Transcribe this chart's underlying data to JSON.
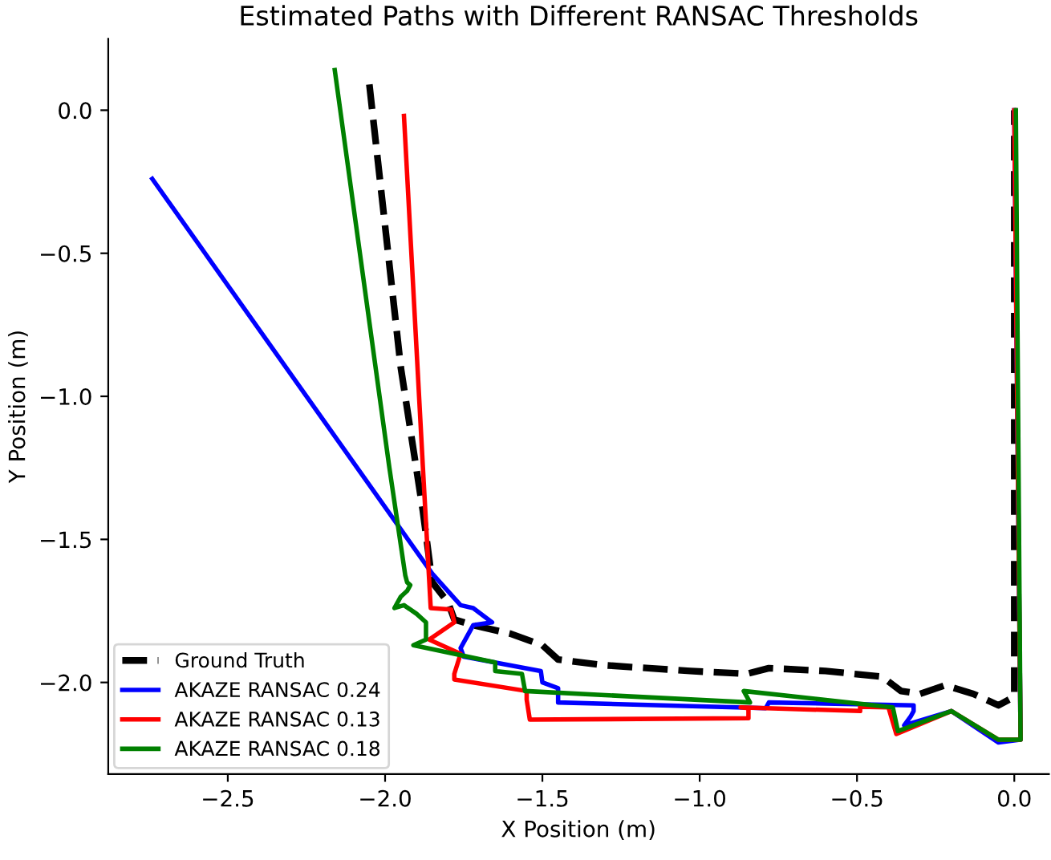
{
  "chart_data": {
    "type": "line",
    "title": "Estimated Paths with Different RANSAC Thresholds",
    "xlabel": "X Position (m)",
    "ylabel": "Y Position (m)",
    "xlim": [
      -2.88,
      0.11
    ],
    "ylim": [
      -2.32,
      0.25
    ],
    "xticks": [
      {
        "value": -2.5,
        "label": "−2.5"
      },
      {
        "value": -2.0,
        "label": "−2.0"
      },
      {
        "value": -1.5,
        "label": "−1.5"
      },
      {
        "value": -1.0,
        "label": "−1.0"
      },
      {
        "value": -0.5,
        "label": "−0.5"
      },
      {
        "value": 0.0,
        "label": "0.0"
      }
    ],
    "yticks": [
      {
        "value": 0.0,
        "label": "0.0"
      },
      {
        "value": -0.5,
        "label": "−0.5"
      },
      {
        "value": -1.0,
        "label": "−1.0"
      },
      {
        "value": -1.5,
        "label": "−1.5"
      },
      {
        "value": -2.0,
        "label": "−2.0"
      }
    ],
    "grid": false,
    "legend": "bottom left",
    "series": [
      {
        "name": "Ground Truth",
        "color": "#000000",
        "line_style": "dashed",
        "x": [
          -2.05,
          -1.95,
          -1.88,
          -1.85,
          -1.8,
          -1.78,
          -1.72,
          -1.6,
          -1.5,
          -1.45,
          -1.3,
          -1.03,
          -0.85,
          -0.78,
          -0.6,
          -0.42,
          -0.36,
          -0.3,
          -0.22,
          -0.13,
          -0.05,
          0.0,
          0.0,
          0.0
        ],
        "values": [
          0.09,
          -0.9,
          -1.4,
          -1.65,
          -1.72,
          -1.78,
          -1.8,
          -1.83,
          -1.87,
          -1.92,
          -1.94,
          -1.96,
          -1.97,
          -1.95,
          -1.96,
          -1.98,
          -2.03,
          -2.04,
          -2.01,
          -2.04,
          -2.08,
          -2.05,
          -1.0,
          0.0
        ]
      },
      {
        "name": "AKAZE RANSAC 0.24",
        "color": "#0000ff",
        "line_style": "solid",
        "x": [
          -2.74,
          -1.85,
          -1.76,
          -1.72,
          -1.66,
          -1.72,
          -1.76,
          -1.75,
          -1.505,
          -1.5,
          -1.45,
          -1.45,
          -0.79,
          -0.78,
          -0.32,
          -0.32,
          -0.33,
          -0.35,
          -0.2,
          -0.05,
          0.02,
          0.0
        ],
        "values": [
          -0.24,
          -1.62,
          -1.73,
          -1.74,
          -1.79,
          -1.8,
          -1.88,
          -1.91,
          -1.96,
          -2.0,
          -2.02,
          -2.07,
          -2.09,
          -2.07,
          -2.08,
          -2.1,
          -2.12,
          -2.15,
          -2.1,
          -2.21,
          -2.2,
          0.0
        ]
      },
      {
        "name": "AKAZE RANSAC 0.13",
        "color": "#ff0000",
        "line_style": "solid",
        "x": [
          -1.94,
          -1.88,
          -1.86,
          -1.855,
          -1.79,
          -1.78,
          -1.86,
          -1.76,
          -1.78,
          -1.78,
          -1.55,
          -1.55,
          -1.54,
          -0.845,
          -0.845,
          -0.87,
          -0.49,
          -0.49,
          -0.4,
          -0.375,
          -0.2,
          -0.05,
          0.02,
          0.0
        ],
        "values": [
          -0.02,
          -1.245,
          -1.64,
          -1.74,
          -1.745,
          -1.79,
          -1.85,
          -1.9,
          -1.97,
          -1.99,
          -2.03,
          -2.06,
          -2.13,
          -2.125,
          -2.09,
          -2.087,
          -2.1,
          -2.085,
          -2.087,
          -2.18,
          -2.1,
          -2.2,
          -2.2,
          0.0
        ]
      },
      {
        "name": "AKAZE RANSAC 0.18",
        "color": "#008000",
        "line_style": "solid",
        "x": [
          -2.16,
          -1.987,
          -1.936,
          -1.93,
          -1.92,
          -1.93,
          -1.95,
          -1.97,
          -1.94,
          -1.9,
          -1.87,
          -1.87,
          -1.91,
          -1.65,
          -1.65,
          -1.565,
          -1.555,
          -0.84,
          -0.86,
          -0.386,
          -0.37,
          -0.2,
          -0.05,
          0.02,
          0.005
        ],
        "values": [
          0.14,
          -1.245,
          -1.625,
          -1.65,
          -1.66,
          -1.68,
          -1.7,
          -1.74,
          -1.73,
          -1.76,
          -1.79,
          -1.85,
          -1.87,
          -1.93,
          -1.96,
          -1.97,
          -2.03,
          -2.07,
          -2.03,
          -2.087,
          -2.17,
          -2.1,
          -2.2,
          -2.2,
          0.0
        ]
      }
    ]
  }
}
